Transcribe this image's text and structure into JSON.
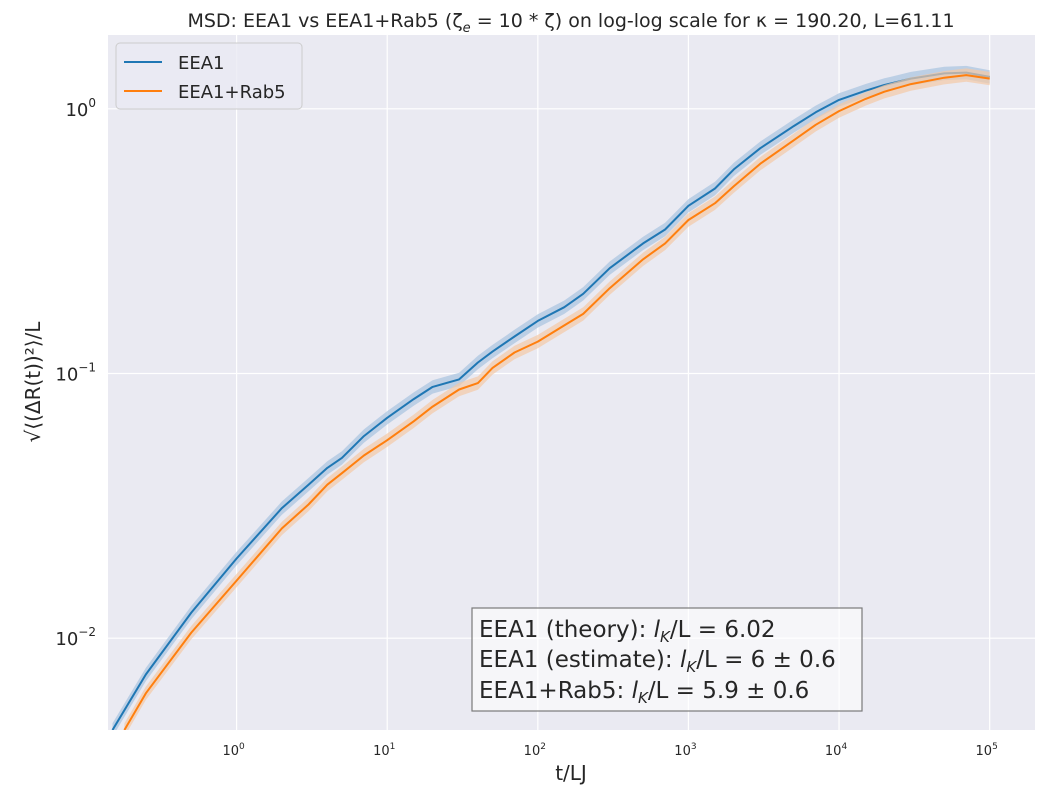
{
  "chart_data": {
    "type": "line",
    "title": "MSD: EEA1 vs EEA1+Rab5 (ζ",
    "title_sub": "e",
    "title_mid": " = 10 * ζ) on log-log scale for κ = 190.20, L=61.11",
    "xlabel": "t/LJ",
    "ylabel": "√⟨(ΔR(t))²⟩/L",
    "x_scale": "log",
    "y_scale": "log",
    "xlim": [
      0.14,
      200000
    ],
    "ylim": [
      0.0045,
      1.9
    ],
    "x_ticks": [
      {
        "value": 1,
        "base": "10",
        "exp": "0"
      },
      {
        "value": 10,
        "base": "10",
        "exp": "1"
      },
      {
        "value": 100,
        "base": "10",
        "exp": "2"
      },
      {
        "value": 1000,
        "base": "10",
        "exp": "3"
      },
      {
        "value": 10000,
        "base": "10",
        "exp": "4"
      },
      {
        "value": 100000,
        "base": "10",
        "exp": "5"
      }
    ],
    "y_ticks": [
      {
        "value": 0.01,
        "base": "10",
        "exp": "−2"
      },
      {
        "value": 0.1,
        "base": "10",
        "exp": "−1"
      },
      {
        "value": 1,
        "base": "10",
        "exp": "0"
      }
    ],
    "grid": true,
    "legend_position": "top-left",
    "series": [
      {
        "name": "EEA1",
        "color": "#1f77b4",
        "band_color": "#a8c3e0",
        "x": [
          0.15,
          0.25,
          0.5,
          1,
          2,
          3,
          4,
          5,
          7,
          10,
          15,
          20,
          30,
          40,
          50,
          70,
          100,
          150,
          200,
          300,
          500,
          700,
          1000,
          1500,
          2000,
          3000,
          5000,
          7000,
          10000,
          15000,
          20000,
          30000,
          50000,
          70000,
          100000
        ],
        "y": [
          0.0045,
          0.0073,
          0.0125,
          0.02,
          0.031,
          0.038,
          0.044,
          0.048,
          0.058,
          0.068,
          0.08,
          0.089,
          0.095,
          0.11,
          0.121,
          0.138,
          0.158,
          0.178,
          0.2,
          0.25,
          0.31,
          0.35,
          0.43,
          0.5,
          0.59,
          0.71,
          0.86,
          0.97,
          1.08,
          1.17,
          1.23,
          1.3,
          1.36,
          1.37,
          1.32
        ]
      },
      {
        "name": "EEA1+Rab5",
        "color": "#ff7f0e",
        "band_color": "#f3c9a6",
        "x": [
          0.18,
          0.25,
          0.5,
          1,
          2,
          3,
          4,
          5,
          7,
          10,
          15,
          20,
          30,
          40,
          50,
          70,
          100,
          150,
          200,
          300,
          500,
          700,
          1000,
          1500,
          2000,
          3000,
          5000,
          7000,
          10000,
          15000,
          20000,
          30000,
          50000,
          70000,
          100000
        ],
        "y": [
          0.0045,
          0.0062,
          0.0105,
          0.0165,
          0.026,
          0.032,
          0.038,
          0.042,
          0.049,
          0.056,
          0.066,
          0.075,
          0.087,
          0.092,
          0.105,
          0.12,
          0.132,
          0.152,
          0.168,
          0.21,
          0.27,
          0.31,
          0.38,
          0.44,
          0.51,
          0.62,
          0.76,
          0.87,
          0.98,
          1.09,
          1.16,
          1.24,
          1.31,
          1.34,
          1.3
        ]
      }
    ],
    "annotation": {
      "lines": [
        {
          "prefix": "EEA1 (theory): ",
          "math": "lK/L = 6.02",
          "l": "l",
          "sub": "K",
          "rest": "/L = 6.02"
        },
        {
          "prefix": "EEA1 (estimate): ",
          "math": "lK/L = 6 ± 0.6",
          "l": "l",
          "sub": "K",
          "rest": "/L = 6 ± 0.6"
        },
        {
          "prefix": "EEA1+Rab5: ",
          "math": "lK/L = 5.9 ± 0.6",
          "l": "l",
          "sub": "K",
          "rest": "/L = 5.9 ± 0.6"
        }
      ]
    }
  },
  "colors": {
    "plot_background": "#eaeaf2",
    "grid": "#ffffff",
    "text": "#262626"
  }
}
